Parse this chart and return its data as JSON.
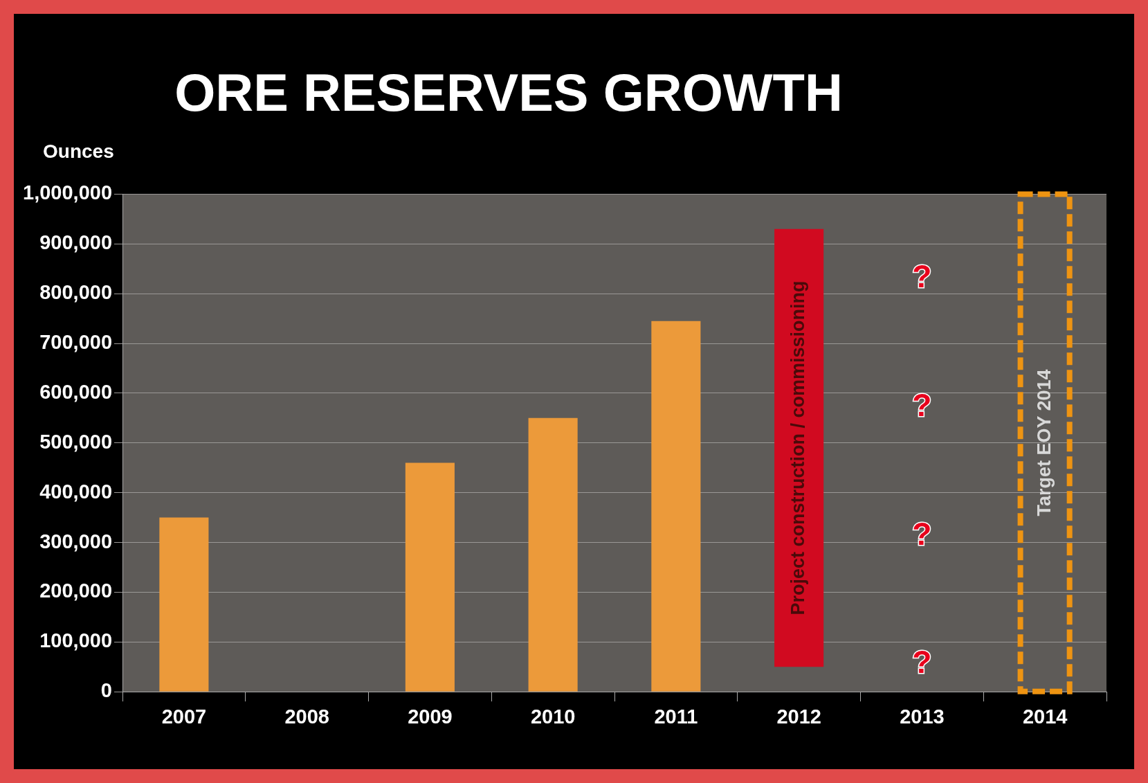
{
  "chart_data": {
    "type": "bar",
    "title": "ORE RESERVES GROWTH",
    "ylabel": "Ounces",
    "categories": [
      "2007",
      "2008",
      "2009",
      "2010",
      "2011",
      "2012",
      "2013",
      "2014"
    ],
    "series": [
      {
        "color": "#ec9a3a",
        "values": [
          350000,
          null,
          460000,
          550000,
          745000,
          null,
          null,
          null
        ]
      },
      {
        "name": "Project construction / commissioning",
        "color": "#d10a20",
        "values": [
          null,
          null,
          null,
          null,
          null,
          880000,
          null,
          null
        ],
        "base": [
          null,
          null,
          null,
          null,
          null,
          50000,
          null,
          null
        ]
      },
      {
        "name": "Target EOY 2014",
        "color": "#ee9412",
        "line_style": "dashed",
        "values": [
          null,
          null,
          null,
          null,
          null,
          null,
          null,
          1000000
        ]
      }
    ],
    "ylim": [
      0,
      1000000
    ],
    "yticks": [
      0,
      {
        "value": 100000,
        "label": "100,000"
      },
      {
        "value": 200000,
        "label": "200,000"
      },
      {
        "value": 300000,
        "label": "300,000"
      },
      {
        "value": 400000,
        "label": "400,000"
      },
      {
        "value": 500000,
        "label": "500,000"
      },
      {
        "value": 600000,
        "label": "600,000"
      },
      {
        "value": 700000,
        "label": "700,000"
      },
      {
        "value": 800000,
        "label": "800,000"
      },
      {
        "value": 900000,
        "label": "900,000"
      },
      {
        "value": 1000000,
        "label": "1,000,000"
      }
    ],
    "grid": "y",
    "legend": false,
    "annotations": [
      "?",
      "?",
      "?",
      "?"
    ]
  }
}
